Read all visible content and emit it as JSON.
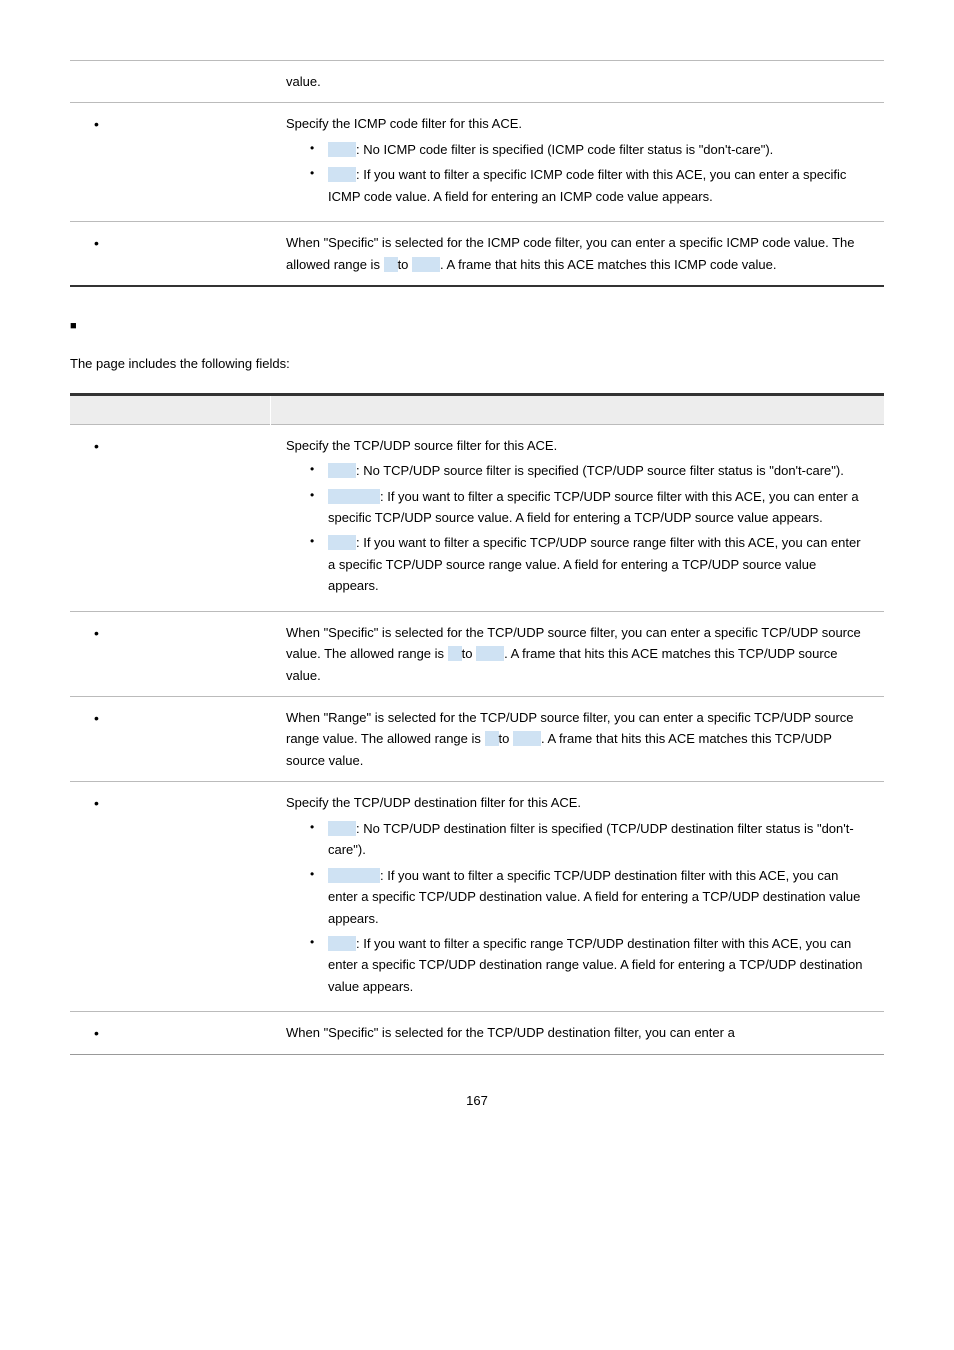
{
  "table1": {
    "rows": [
      {
        "label": "",
        "content_plain": "value."
      },
      {
        "label_bullet": true,
        "content_html": "Specify the ICMP code filter for this ACE.",
        "bullets": [
          {
            "hl": true,
            "text": ": No ICMP code filter is specified (ICMP code filter status is \"don't-care\")."
          },
          {
            "hl": true,
            "text": ": If you want to filter a specific ICMP code filter with this ACE, you can enter a specific ICMP code value. A field for entering an ICMP code value appears."
          }
        ]
      },
      {
        "label_bullet": true,
        "content_icmp": true
      }
    ],
    "icmp_text": {
      "a": "When \"Specific\" is selected for the ICMP code filter, you can enter a specific ICMP code value. The allowed range is ",
      "b": " to ",
      "c": ". A frame that hits this ACE matches this ICMP code value."
    }
  },
  "intro": "The page includes the following fields:",
  "table2": {
    "rows": [
      {
        "label_bullet": true,
        "header": "Specify the TCP/UDP source filter for this ACE.",
        "bullets": [
          {
            "hl": true,
            "text": ": No TCP/UDP source filter is specified (TCP/UDP source filter status is \"don't-care\")."
          },
          {
            "hl_wide": true,
            "text": ": If you want to filter a specific TCP/UDP source filter with this ACE, you can enter a specific TCP/UDP source value. A field for entering a TCP/UDP source value appears."
          },
          {
            "hl": true,
            "text": ": If you want to filter a specific TCP/UDP source range filter with this ACE, you can enter a specific TCP/UDP source range value. A field for entering a TCP/UDP source value appears."
          }
        ]
      },
      {
        "label_bullet": true,
        "source_specific": true
      },
      {
        "label_bullet": true,
        "source_range": true
      },
      {
        "label_bullet": true,
        "header": "Specify the TCP/UDP destination filter for this ACE.",
        "bullets": [
          {
            "hl": true,
            "text": ": No TCP/UDP destination filter is specified (TCP/UDP destination filter status is \"don't-care\")."
          },
          {
            "hl_wide": true,
            "text": ": If you want to filter a specific TCP/UDP destination filter with this ACE, you can enter a specific TCP/UDP destination value. A field for entering a TCP/UDP destination value appears."
          },
          {
            "hl": true,
            "text": ": If you want to filter a specific range TCP/UDP destination filter with this ACE, you can enter a specific TCP/UDP destination range value. A field for entering a TCP/UDP destination value appears."
          }
        ]
      },
      {
        "label_bullet": true,
        "dest_specific": true
      }
    ],
    "source_specific": {
      "a": "When \"Specific\" is selected for the TCP/UDP source filter, you can enter a specific TCP/UDP source value. The allowed range is ",
      "b": " to ",
      "c": ". A frame that hits this ACE matches this TCP/UDP source value."
    },
    "source_range": {
      "a": "When \"Range\" is selected for the TCP/UDP source filter, you can enter a specific TCP/UDP source range value. The allowed range is ",
      "b": " to ",
      "c": ". A frame that hits this ACE matches this TCP/UDP source value."
    },
    "dest_specific": "When \"Specific\" is selected for the TCP/UDP destination filter, you can enter a"
  },
  "page_number": "167"
}
